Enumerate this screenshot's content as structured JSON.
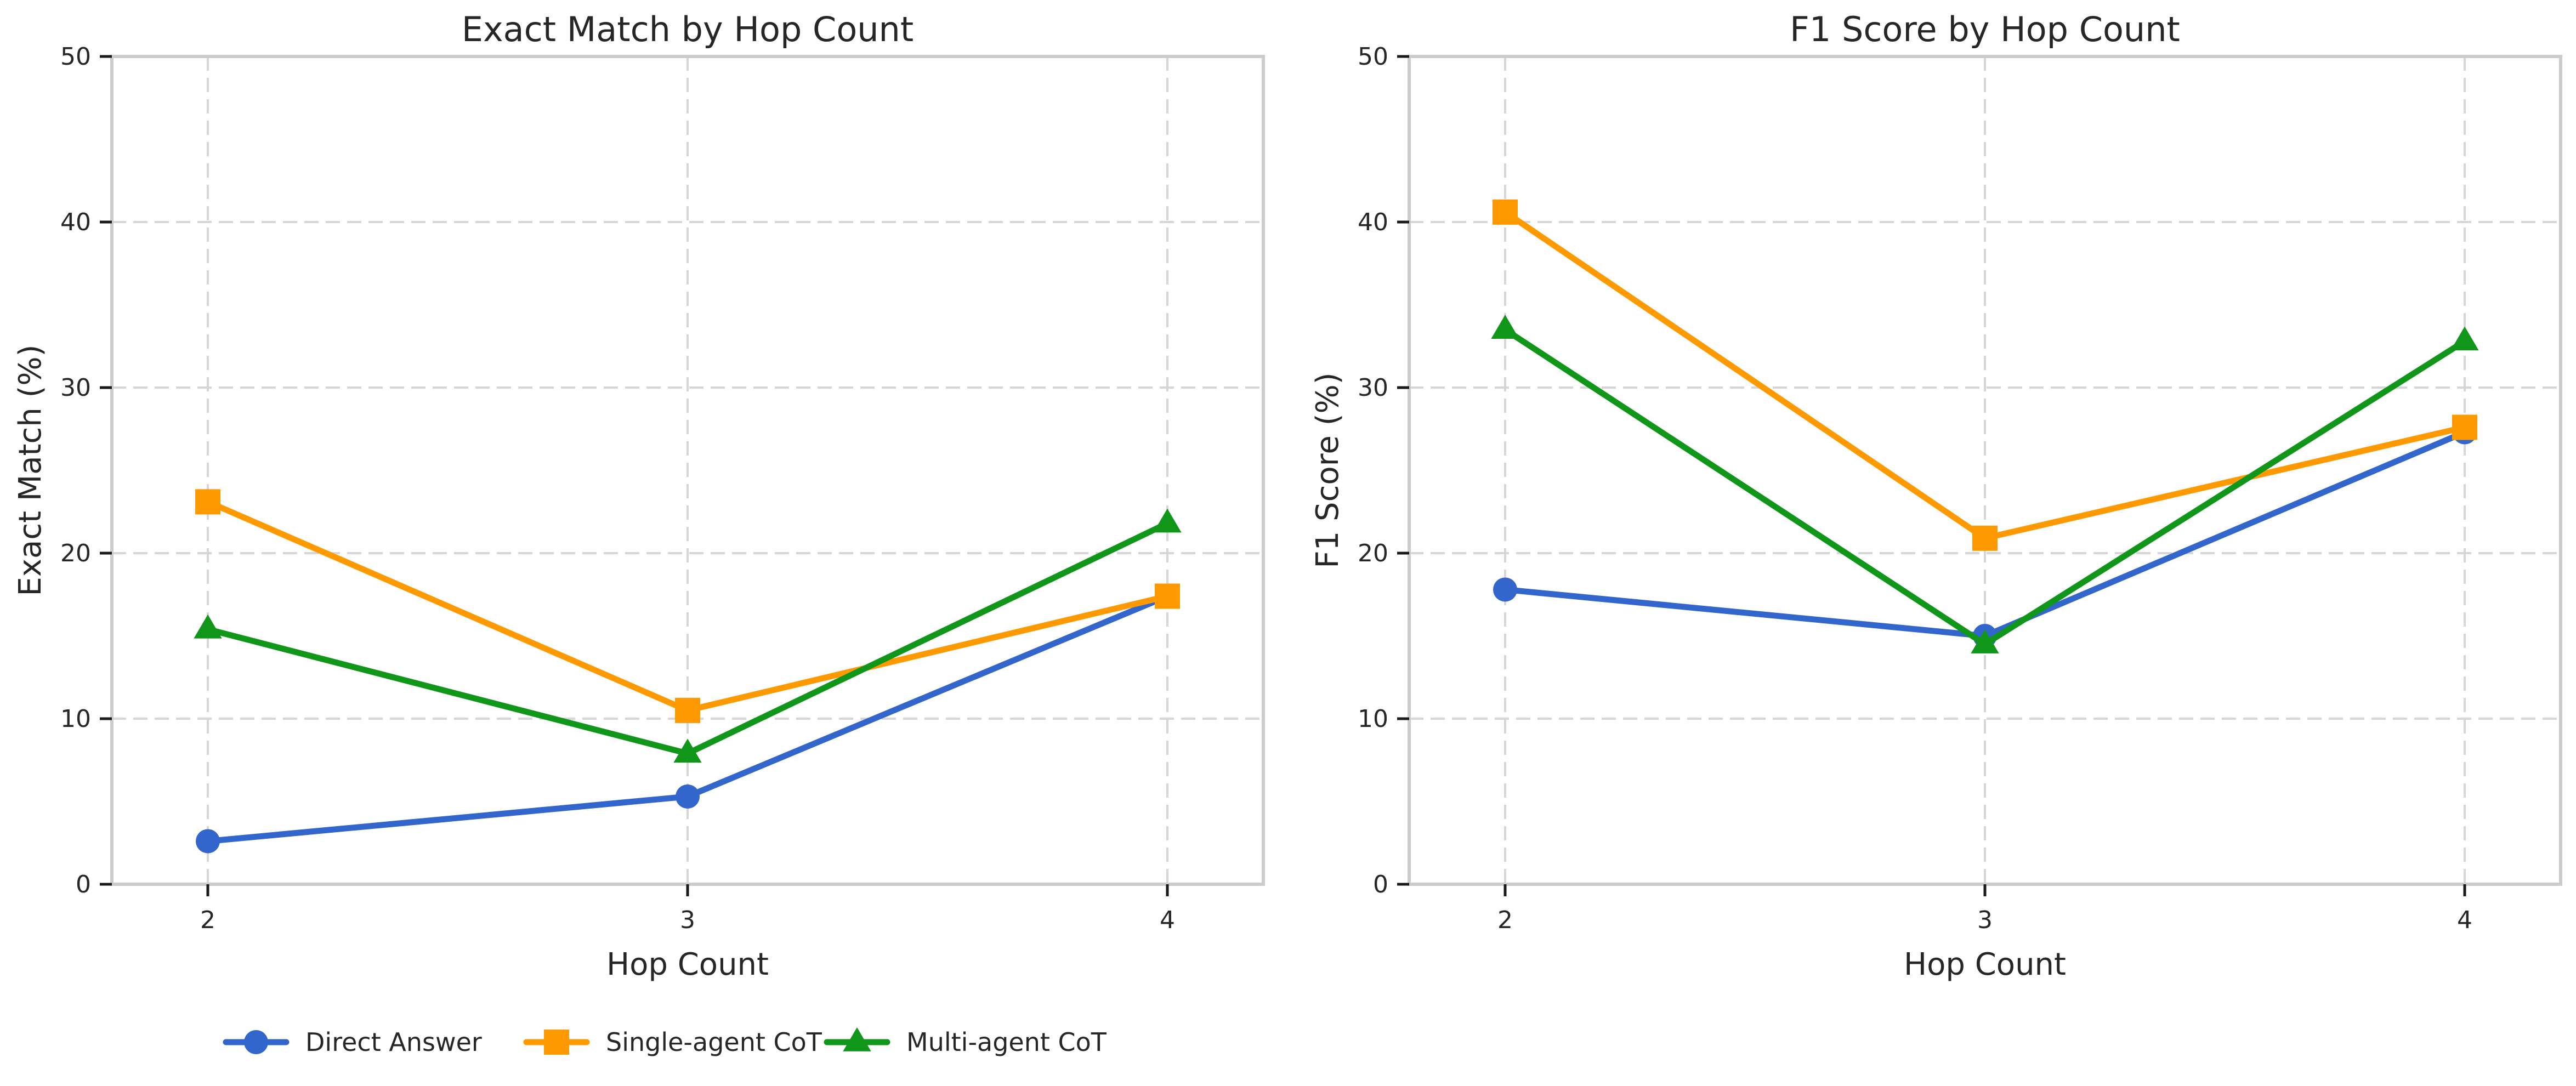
{
  "chart_data": [
    {
      "type": "line",
      "title": "Exact Match by Hop Count",
      "xlabel": "Hop Count",
      "ylabel": "Exact Match (%)",
      "x": [
        2,
        3,
        4
      ],
      "x_tick_labels": [
        "2",
        "3",
        "4"
      ],
      "ylim": [
        0,
        50
      ],
      "y_ticks": [
        0,
        10,
        20,
        30,
        40,
        50
      ],
      "y_tick_labels": [
        "0",
        "10",
        "20",
        "30",
        "40",
        "50"
      ],
      "grid": true,
      "series": [
        {
          "name": "Direct Answer",
          "values": [
            2.6,
            5.3,
            17.4
          ]
        },
        {
          "name": "Single-agent CoT",
          "values": [
            23.1,
            10.5,
            17.4
          ]
        },
        {
          "name": "Multi-agent CoT",
          "values": [
            15.4,
            7.9,
            21.8
          ]
        }
      ]
    },
    {
      "type": "line",
      "title": "F1 Score by Hop Count",
      "xlabel": "Hop Count",
      "ylabel": "F1 Score (%)",
      "x": [
        2,
        3,
        4
      ],
      "x_tick_labels": [
        "2",
        "3",
        "4"
      ],
      "ylim": [
        0,
        50
      ],
      "y_ticks": [
        0,
        10,
        20,
        30,
        40,
        50
      ],
      "y_tick_labels": [
        "0",
        "10",
        "20",
        "30",
        "40",
        "50"
      ],
      "grid": true,
      "series": [
        {
          "name": "Direct Answer",
          "values": [
            17.8,
            15.0,
            27.3
          ]
        },
        {
          "name": "Single-agent CoT",
          "values": [
            40.6,
            20.9,
            27.6
          ]
        },
        {
          "name": "Multi-agent CoT",
          "values": [
            33.5,
            14.5,
            32.8
          ]
        }
      ]
    }
  ],
  "legend": {
    "placement": "bottom-center",
    "entries": [
      {
        "name": "Direct Answer",
        "color": "#3366cc",
        "marker": "circle"
      },
      {
        "name": "Single-agent CoT",
        "color": "#ff9900",
        "marker": "square"
      },
      {
        "name": "Multi-agent CoT",
        "color": "#109618",
        "marker": "triangle"
      }
    ]
  }
}
